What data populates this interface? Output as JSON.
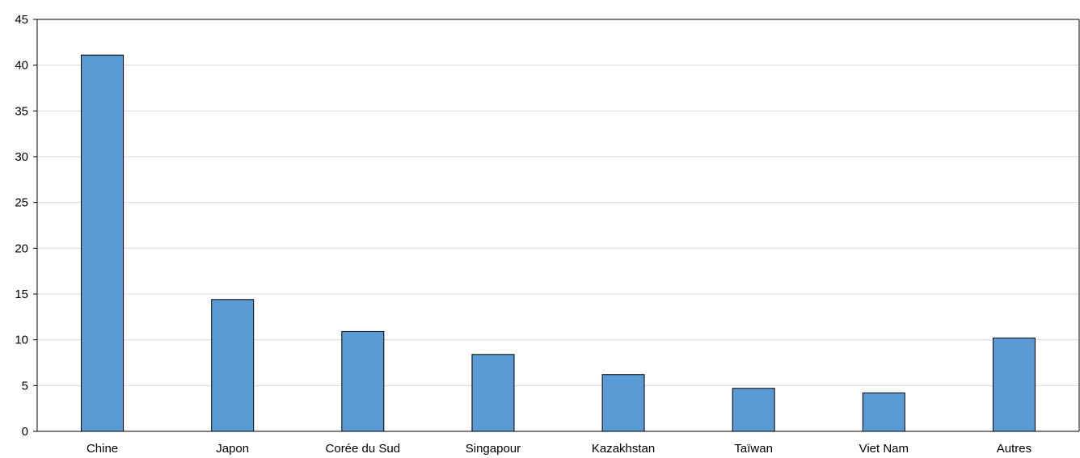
{
  "chart_data": {
    "type": "bar",
    "categories": [
      "Chine",
      "Japon",
      "Corée du Sud",
      "Singapour",
      "Kazakhstan",
      "Taïwan",
      "Viet Nam",
      "Autres"
    ],
    "values": [
      41.1,
      14.4,
      10.9,
      8.4,
      6.2,
      4.7,
      4.2,
      10.2
    ],
    "ylim": [
      0,
      45
    ],
    "yticks": [
      "0",
      "5",
      "10",
      "15",
      "20",
      "25",
      "30",
      "35",
      "40",
      "45"
    ],
    "grid": true,
    "bar_color": "#5b9bd5"
  }
}
